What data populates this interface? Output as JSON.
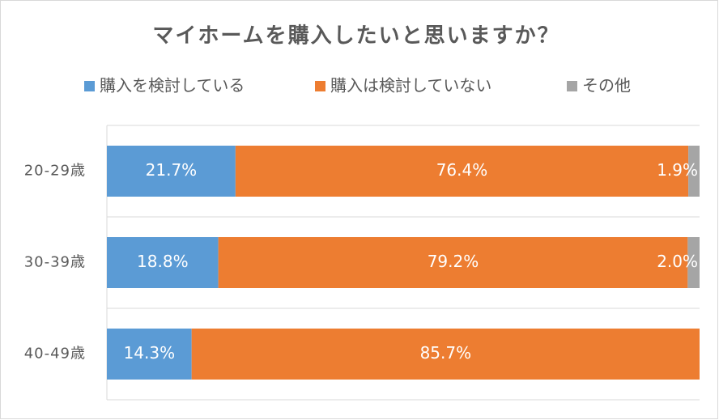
{
  "chart_data": {
    "type": "stacked-bar-horizontal",
    "title": "マイホームを購入したいと思いますか？",
    "categories": [
      "20-29歳",
      "30-39歳",
      "40-49歳"
    ],
    "series": [
      {
        "name": "購入を検討している",
        "color": "#5b9bd5",
        "values": [
          21.7,
          18.8,
          14.3
        ],
        "value_labels": [
          "21.7%",
          "18.8%",
          "14.3%"
        ]
      },
      {
        "name": "購入は検討していない",
        "color": "#ed7d31",
        "values": [
          76.4,
          79.2,
          85.7
        ],
        "value_labels": [
          "76.4%",
          "79.2%",
          "85.7%"
        ]
      },
      {
        "name": "その他",
        "color": "#a5a5a5",
        "values": [
          1.9,
          2.0,
          null
        ],
        "value_labels": [
          "1.9%",
          "2.0%",
          null
        ]
      }
    ],
    "xlim": [
      0,
      100
    ],
    "legend": "top"
  }
}
